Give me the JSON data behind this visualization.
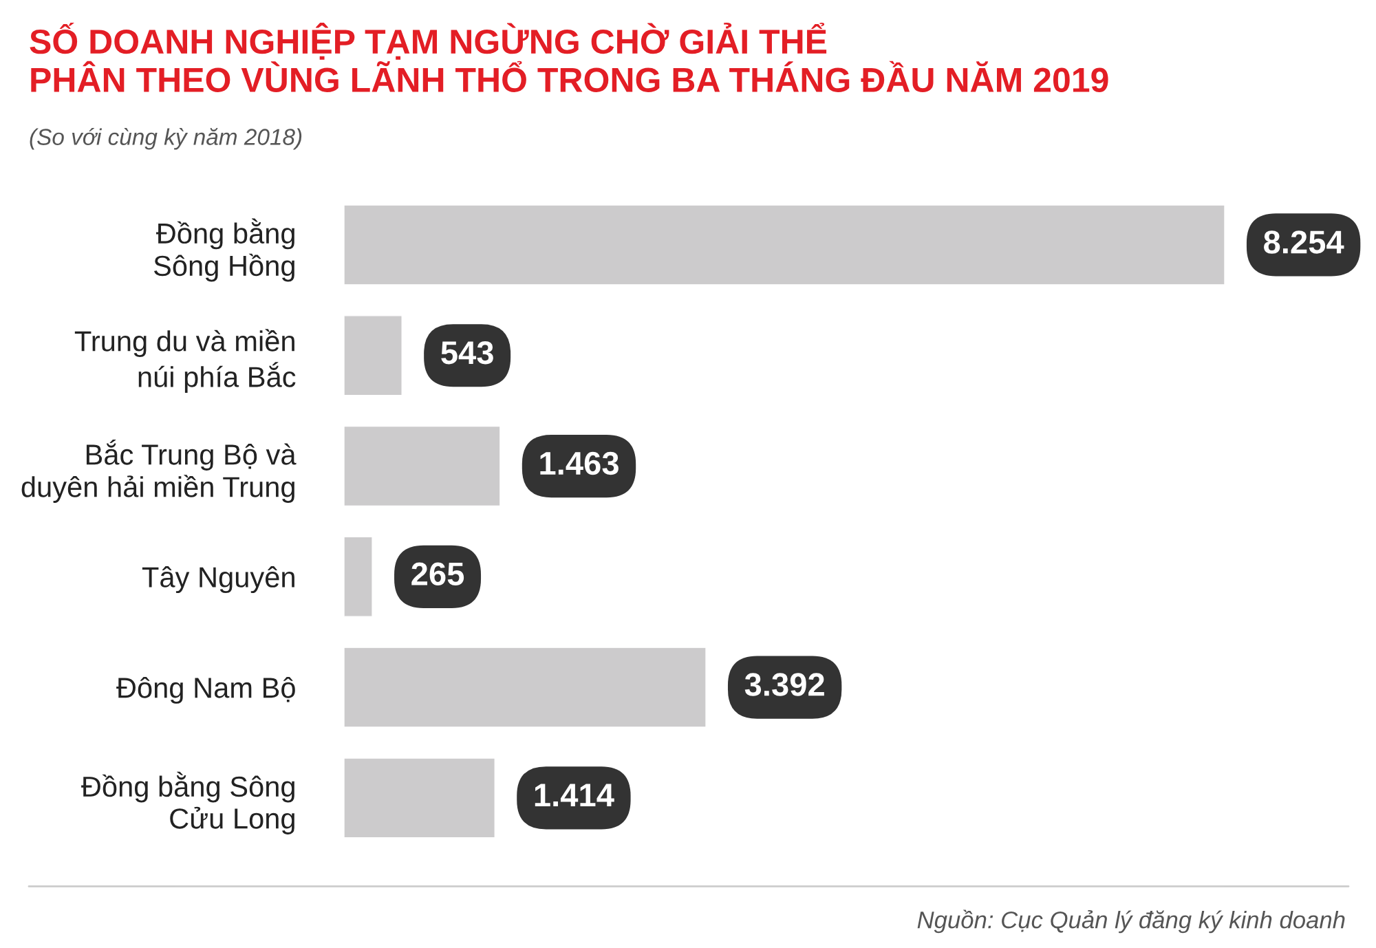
{
  "chart_data": {
    "type": "bar",
    "orientation": "horizontal",
    "title": "SỐ DOANH NGHIỆP TẠM NGỪNG CHỜ GIẢI THỂ\nPHÂN THEO VÙNG LÃNH THỔ TRONG BA THÁNG ĐẦU NĂM 2019",
    "subtitle": "(So với cùng kỳ năm 2018)",
    "categories": [
      "Đồng bằng\nSông Hồng",
      "Trung du và miền\nnúi phía Bắc",
      "Bắc Trung Bộ và\nduyên hải miền Trung",
      "Tây Nguyên",
      "Đông Nam Bộ",
      "Đồng bằng Sông\nCửu Long"
    ],
    "values": [
      8254,
      543,
      1463,
      265,
      3392,
      1414
    ],
    "value_labels": [
      "8.254",
      "543",
      "1.463",
      "265",
      "3.392",
      "1.414"
    ],
    "color": "#cccbcc",
    "tick_labels": "y",
    "grid": false,
    "legend": false,
    "annotations": [
      "Nguồn: Cục Quản lý đăng ký kinh doanh"
    ]
  }
}
